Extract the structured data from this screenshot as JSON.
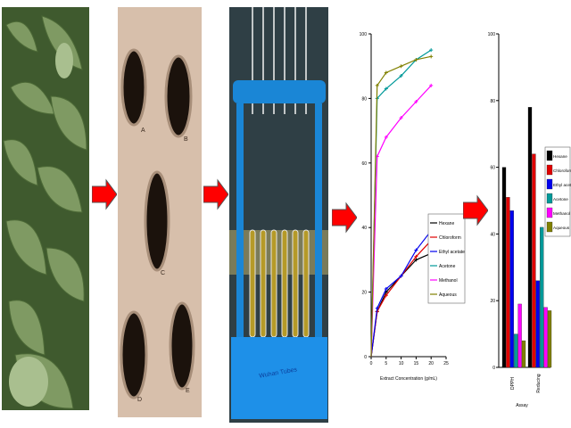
{
  "panels": {
    "plant": {
      "icon": "leafy-plant-photo"
    },
    "pots": {
      "icon": "soil-pots-photo",
      "pot_labels": [
        "A",
        "B",
        "C",
        "D",
        "E"
      ]
    },
    "tubes": {
      "icon": "test-tube-rack-photo",
      "rack_label": "Wuhan Tubes"
    }
  },
  "arrow_color": "#ff0000",
  "colors": {
    "hexane": "#000000",
    "chloroform": "#e00000",
    "ethyl_acetate": "#0000ee",
    "acetone": "#009999",
    "methanol": "#ff00ff",
    "aqueous": "#808000"
  },
  "chart_data": [
    {
      "type": "line",
      "xlabel": "Extract Concentration (g/mL)",
      "ylabel": "",
      "xlim": [
        0,
        25
      ],
      "ylim": [
        0,
        100
      ],
      "x_ticks": [
        "0",
        "5",
        "10",
        "15",
        "20",
        "25"
      ],
      "y_ticks": [
        "0",
        "20",
        "40",
        "60",
        "80",
        "100"
      ],
      "legend_position": "right",
      "series": [
        {
          "name": "Hexane",
          "x": [
            0,
            2,
            5,
            10,
            15,
            20
          ],
          "y": [
            0,
            14,
            20,
            25,
            30,
            32
          ],
          "color": "#000000"
        },
        {
          "name": "Chloroform",
          "x": [
            0,
            2,
            5,
            10,
            15,
            20
          ],
          "y": [
            0,
            14,
            19,
            25,
            31,
            36
          ],
          "color": "#e00000"
        },
        {
          "name": "Ethyl acetate",
          "x": [
            0,
            2,
            5,
            10,
            15,
            20
          ],
          "y": [
            0,
            15,
            21,
            25,
            33,
            39
          ],
          "color": "#0000ee"
        },
        {
          "name": "Acetone",
          "x": [
            0,
            2,
            5,
            10,
            15,
            20
          ],
          "y": [
            0,
            80,
            83,
            87,
            92,
            95
          ],
          "color": "#009999"
        },
        {
          "name": "Methanol",
          "x": [
            0,
            2,
            5,
            10,
            15,
            20
          ],
          "y": [
            0,
            62,
            68,
            74,
            79,
            84
          ],
          "color": "#ff00ff"
        },
        {
          "name": "Aqueous",
          "x": [
            0,
            2,
            5,
            10,
            15,
            20
          ],
          "y": [
            0,
            84,
            88,
            90,
            92,
            93
          ],
          "color": "#808000"
        }
      ]
    },
    {
      "type": "bar",
      "xlabel": "Assay",
      "ylabel": "",
      "ylim": [
        0,
        100
      ],
      "y_ticks": [
        "0",
        "20",
        "40",
        "60",
        "80",
        "100"
      ],
      "categories": [
        "DPPH",
        "Reducing"
      ],
      "legend_position": "right",
      "series": [
        {
          "name": "Hexane",
          "values": [
            60,
            78
          ],
          "color": "#000000"
        },
        {
          "name": "Chloroform",
          "values": [
            51,
            64
          ],
          "color": "#e00000"
        },
        {
          "name": "Ethyl acetate",
          "values": [
            47,
            26
          ],
          "color": "#0000ee"
        },
        {
          "name": "Acetone",
          "values": [
            10,
            42
          ],
          "color": "#009999"
        },
        {
          "name": "Methanol",
          "values": [
            19,
            18
          ],
          "color": "#ff00ff"
        },
        {
          "name": "Aqueous",
          "values": [
            8,
            17
          ],
          "color": "#808000"
        }
      ]
    }
  ]
}
